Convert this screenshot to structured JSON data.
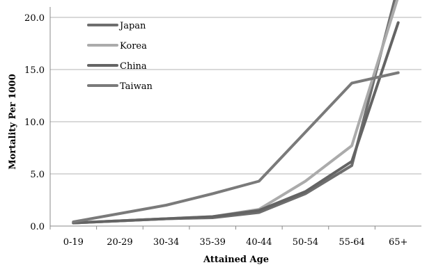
{
  "chart_data": {
    "type": "line",
    "title": "",
    "xlabel": "Attained Age",
    "ylabel": "Mortality Per 1000",
    "categories": [
      "0-19",
      "20-29",
      "30-34",
      "35-39",
      "40-44",
      "50-54",
      "55-64",
      "65+"
    ],
    "ylim": [
      0,
      21
    ],
    "yticks": [
      "0.0",
      "5.0",
      "10.0",
      "15.0",
      "20.0"
    ],
    "grid": true,
    "legend_position": "top-left",
    "series": [
      {
        "name": "Japan",
        "color": "#6e6e6e",
        "values": [
          0.3,
          0.5,
          0.7,
          0.8,
          1.3,
          3.1,
          5.8,
          23.0
        ]
      },
      {
        "name": "Korea",
        "color": "#ababab",
        "values": [
          0.3,
          0.5,
          0.7,
          0.9,
          1.6,
          4.3,
          7.7,
          22.0
        ]
      },
      {
        "name": "China",
        "color": "#646464",
        "values": [
          0.3,
          0.5,
          0.7,
          0.9,
          1.5,
          3.3,
          6.2,
          19.5
        ]
      },
      {
        "name": "Taiwan",
        "color": "#7a7a7a",
        "values": [
          0.4,
          1.2,
          2.0,
          3.1,
          4.3,
          9.0,
          13.7,
          14.7
        ]
      }
    ]
  }
}
